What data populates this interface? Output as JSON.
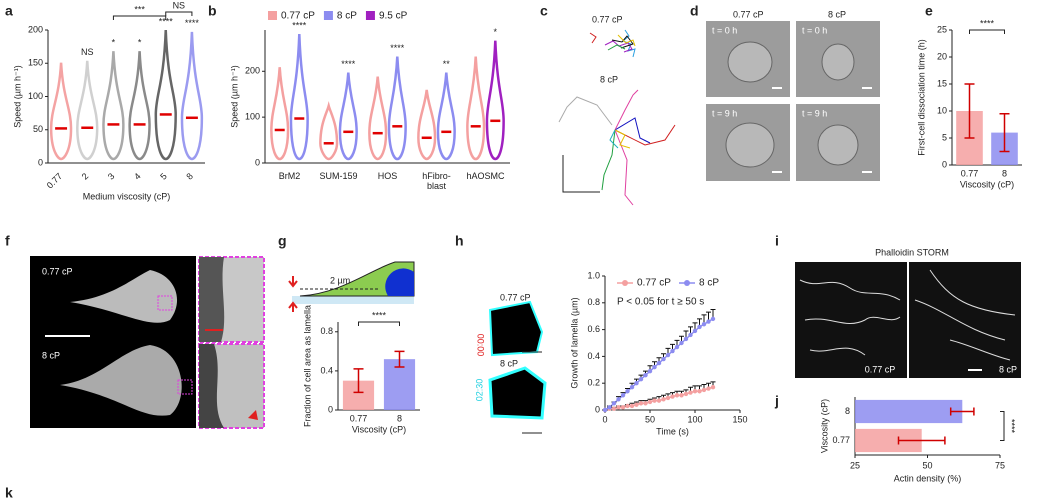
{
  "figure": {
    "panel_labels": [
      "a",
      "b",
      "c",
      "d",
      "e",
      "f",
      "g",
      "h",
      "i",
      "j",
      "k"
    ],
    "c": {
      "labels": [
        "0.77 cP",
        "8 cP"
      ]
    },
    "d": {
      "columns": [
        "0.77 cP",
        "8 cP"
      ],
      "times": [
        "t = 0 h",
        "t = 9 h"
      ]
    },
    "f": {
      "labels": [
        "0.77 cP",
        "8 cP"
      ]
    },
    "g": {
      "scale": "2 µm"
    },
    "h": {
      "labels": [
        "0.77 cP",
        "8 cP"
      ],
      "timestamps": [
        "00:00",
        "02:30"
      ]
    },
    "i": {
      "title": "Phalloidin STORM",
      "labels": [
        "0.77 cP",
        "8 cP"
      ]
    }
  },
  "chart_data": [
    {
      "type": "violin",
      "categories": [
        "0.77",
        "2",
        "3",
        "4",
        "5",
        "8"
      ],
      "colors": [
        "#f4a3a3",
        "#d0d0d0",
        "#a9a9a9",
        "#8a8a8a",
        "#666666",
        "#9b9bf0"
      ],
      "values": [
        52,
        53,
        58,
        58,
        73,
        68
      ],
      "ylabel": "Speed (µm h⁻¹)",
      "xlabel": "Medium viscosity (cP)",
      "ylim": [
        0,
        200
      ],
      "yticks": [
        0,
        50,
        100,
        150,
        200
      ],
      "significance": [
        null,
        "NS",
        "*",
        "*",
        "****",
        "****"
      ],
      "brackets": [
        "***",
        "NS"
      ]
    },
    {
      "type": "grouped_violin",
      "categories": [
        "BrM2",
        "SUM-159",
        "HOS",
        "hFibro-blast",
        "hAOSMC"
      ],
      "series": [
        {
          "name": "0.77 cP",
          "color": "#f4a0a0",
          "values": [
            72,
            43,
            65,
            55,
            80
          ]
        },
        {
          "name": "8 cP",
          "color": "#8c8cf0",
          "values": [
            97,
            68,
            80,
            68,
            null
          ]
        },
        {
          "name": "9.5 cP",
          "color": "#a020c0",
          "values": [
            null,
            null,
            null,
            null,
            92
          ]
        }
      ],
      "ylabel": "Speed (µm h⁻¹)",
      "ylim": [
        0,
        290
      ],
      "yticks": [
        0,
        100,
        200
      ],
      "significance": [
        "****",
        "****",
        "****",
        "**",
        "*"
      ]
    },
    {
      "type": "bar",
      "categories": [
        "0.77",
        "8"
      ],
      "values": [
        10,
        6
      ],
      "errors": [
        5,
        3.5
      ],
      "colors": [
        "#f4a0a0",
        "#8c8cf0"
      ],
      "ylim": [
        0,
        25
      ],
      "yticks": [
        0,
        5,
        10,
        15,
        20,
        25
      ],
      "ylabel": "First-cell dissociation time (h)",
      "xlabel": "Viscosity (cP)",
      "significance": "****"
    },
    {
      "type": "bar",
      "categories": [
        "0.77",
        "8"
      ],
      "values": [
        0.3,
        0.52
      ],
      "errors": [
        0.12,
        0.08
      ],
      "colors": [
        "#f4a0a0",
        "#8c8cf0"
      ],
      "ylim": [
        0,
        0.9
      ],
      "yticks": [
        0,
        0.4,
        0.8
      ],
      "ylabel": "Fraction of cell area as lamella",
      "xlabel": "Viscosity (cP)",
      "significance": "****"
    },
    {
      "type": "line",
      "x": [
        0,
        5,
        10,
        15,
        20,
        25,
        30,
        35,
        40,
        45,
        50,
        55,
        60,
        65,
        70,
        75,
        80,
        85,
        90,
        95,
        100,
        105,
        110,
        115,
        120
      ],
      "series": [
        {
          "name": "0.77 cP",
          "color": "#f4a0a0",
          "values": [
            0,
            0.01,
            0.01,
            0.02,
            0.02,
            0.03,
            0.03,
            0.04,
            0.05,
            0.05,
            0.06,
            0.07,
            0.07,
            0.08,
            0.09,
            0.1,
            0.11,
            0.11,
            0.12,
            0.13,
            0.14,
            0.14,
            0.15,
            0.16,
            0.17
          ],
          "errors": [
            0,
            0.01,
            0.01,
            0.01,
            0.01,
            0.01,
            0.02,
            0.02,
            0.02,
            0.02,
            0.02,
            0.02,
            0.03,
            0.03,
            0.03,
            0.03,
            0.03,
            0.03,
            0.03,
            0.04,
            0.04,
            0.04,
            0.04,
            0.04,
            0.04
          ]
        },
        {
          "name": "8 cP",
          "color": "#8c8cf0",
          "values": [
            0,
            0.02,
            0.05,
            0.08,
            0.11,
            0.14,
            0.17,
            0.2,
            0.23,
            0.26,
            0.29,
            0.32,
            0.35,
            0.38,
            0.41,
            0.44,
            0.47,
            0.5,
            0.53,
            0.56,
            0.59,
            0.62,
            0.64,
            0.66,
            0.68
          ],
          "errors": [
            0,
            0.01,
            0.01,
            0.02,
            0.02,
            0.02,
            0.03,
            0.03,
            0.03,
            0.03,
            0.04,
            0.04,
            0.04,
            0.04,
            0.05,
            0.05,
            0.05,
            0.05,
            0.06,
            0.06,
            0.06,
            0.06,
            0.07,
            0.07,
            0.07
          ]
        }
      ],
      "xlim": [
        0,
        150
      ],
      "xticks": [
        0,
        50,
        100,
        150
      ],
      "ylim": [
        0,
        1
      ],
      "yticks": [
        0,
        0.2,
        0.4,
        0.6,
        0.8,
        {
          "value": 1,
          "label": "1.0"
        }
      ],
      "ylabel": "Growth of lamella (µm)",
      "xlabel": "Time (s)",
      "annotation": "P < 0.05 for t ≥ 50 s"
    },
    {
      "type": "hbar",
      "categories": [
        "8",
        "0.77"
      ],
      "values": [
        62,
        48
      ],
      "errors": [
        4,
        8
      ],
      "colors": [
        "#8c8cf0",
        "#f4a0a0"
      ],
      "xlim": [
        25,
        75
      ],
      "xticks": [
        25,
        50,
        75
      ],
      "ylabel": "Viscosity (cP)",
      "xlabel": "Actin density (%)",
      "significance": "****"
    }
  ]
}
